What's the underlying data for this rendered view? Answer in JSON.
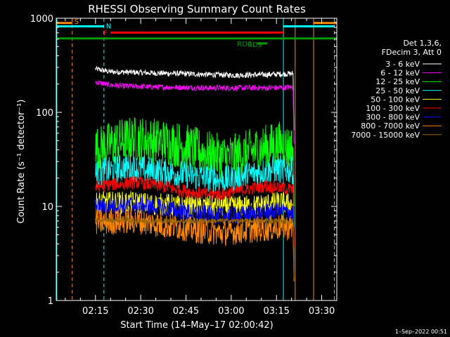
{
  "chart_data": {
    "type": "line",
    "title": "RHESSI Observing Summary Count Rates",
    "xlabel": "Start Time (14–May–17 02:00:42)",
    "ylabel": "Count Rate (s⁻¹ detector⁻¹)",
    "yscale": "log",
    "ylim": [
      1,
      1000
    ],
    "xlim_minutes": [
      2.0,
      95.0
    ],
    "y_ticks": [
      "1",
      "10",
      "100",
      "1000"
    ],
    "x_ticks": [
      {
        "label": "02:15",
        "minute": 15
      },
      {
        "label": "02:30",
        "minute": 30
      },
      {
        "label": "02:45",
        "minute": 45
      },
      {
        "label": "03:00",
        "minute": 60
      },
      {
        "label": "03:15",
        "minute": 75
      },
      {
        "label": "03:30",
        "minute": 90
      }
    ],
    "legend_header": [
      "Det 1,3,6,",
      "FDecim 3, Att 0"
    ],
    "legend_position": "right, outside plot",
    "series": [
      {
        "name": "3 - 6 keV",
        "color": "#ffffff",
        "start": 15,
        "end": 80.5,
        "level": [
          290,
          270,
          268,
          265,
          262,
          260,
          258,
          255,
          252,
          250,
          248,
          250,
          252,
          255,
          258
        ],
        "jitter": 0.03
      },
      {
        "name": "6 - 12 keV",
        "color": "#ff00ff",
        "start": 15,
        "end": 80.5,
        "level": [
          210,
          195,
          190,
          188,
          186,
          185,
          184,
          183,
          182,
          182,
          182,
          182,
          182,
          183,
          185
        ],
        "jitter": 0.03
      },
      {
        "name": "12 - 25 keV",
        "color": "#00ff00",
        "start": 15,
        "end": 80.5,
        "level": [
          40,
          45,
          50,
          52,
          50,
          48,
          45,
          40,
          36,
          33,
          34,
          38,
          42,
          46,
          40
        ],
        "jitter": 0.25
      },
      {
        "name": "25 - 50 keV",
        "color": "#00ffff",
        "start": 15,
        "end": 80.5,
        "level": [
          22,
          24,
          26,
          25,
          24,
          23,
          22,
          21,
          20,
          19,
          20,
          22,
          24,
          25,
          24
        ],
        "jitter": 0.15
      },
      {
        "name": "50 - 100 keV",
        "color": "#ffff00",
        "start": 15,
        "end": 80.5,
        "level": [
          11,
          11,
          11,
          11,
          10.5,
          10.5,
          10,
          10,
          10,
          10,
          10,
          10,
          10.5,
          11,
          10.5
        ],
        "jitter": 0.12
      },
      {
        "name": "100 - 300 keV",
        "color": "#ff0000",
        "start": 15,
        "end": 80.5,
        "level": [
          16,
          17,
          17.5,
          18,
          17,
          16,
          15,
          14,
          13.5,
          13.5,
          14.5,
          15.5,
          16.5,
          16,
          15
        ],
        "jitter": 0.07
      },
      {
        "name": "300 - 800 keV",
        "color": "#0000ff",
        "start": 15,
        "end": 80.5,
        "level": [
          10,
          10,
          10.5,
          10.5,
          10,
          9.5,
          9,
          8.5,
          8.2,
          8,
          8,
          8.3,
          8.6,
          9,
          8.6
        ],
        "jitter": 0.1
      },
      {
        "name": "800 - 7000 keV",
        "color": "#ff8800",
        "start": 15,
        "end": 80.5,
        "level": [
          6.8,
          6.8,
          7,
          7,
          6.6,
          6.2,
          6,
          5.6,
          5.4,
          5.2,
          5.4,
          5.6,
          5.8,
          6,
          6
        ],
        "jitter": 0.14
      },
      {
        "name": "7000 - 15000 keV",
        "color": "#996600",
        "start": 15,
        "end": 80.5,
        "level": [
          7.2,
          7.2,
          7.2,
          7,
          7,
          7,
          7,
          7,
          7,
          7,
          7,
          7,
          7,
          7,
          7
        ],
        "jitter": 0.03
      }
    ],
    "vertical_lines": [
      {
        "minute": 2.2,
        "color": "#00ffff",
        "style": "solid"
      },
      {
        "minute": 7.3,
        "color": "#ff8800",
        "style": "dashed"
      },
      {
        "minute": 17.8,
        "color": "#00ffff",
        "style": "dashed"
      },
      {
        "minute": 77.3,
        "color": "#00ffff",
        "style": "solid"
      },
      {
        "minute": 81.2,
        "color": "#ff8800",
        "style": "solid"
      },
      {
        "minute": 87.3,
        "color": "#ff8800",
        "style": "solid"
      },
      {
        "minute": 94.2,
        "color": "#00ffff",
        "style": "dashed"
      }
    ],
    "state_bars": [
      {
        "label": "S",
        "color": "#ff8800",
        "start": 2.2,
        "end": 7.3,
        "y_value": 890
      },
      {
        "label": "",
        "color": "#ff8800",
        "start": 87.3,
        "end": 95,
        "y_value": 890
      },
      {
        "label": "N",
        "color": "#00ffff",
        "start": 2.2,
        "end": 17.8,
        "y_value": 820
      },
      {
        "label": "",
        "color": "#00ffff",
        "start": 77.3,
        "end": 94.2,
        "y_value": 820
      },
      {
        "label": "F",
        "color": "#ff0000",
        "start": 20,
        "end": 77.3,
        "y_value": 705
      },
      {
        "label": "RD9",
        "color": "#009900",
        "start": 2.2,
        "end": 95,
        "y_value": 610
      },
      {
        "label": "RD6",
        "color": "#009900",
        "start": 68.5,
        "end": 72,
        "y_value": 540
      }
    ],
    "footer_date": "1–Sep–2022 00:51"
  }
}
